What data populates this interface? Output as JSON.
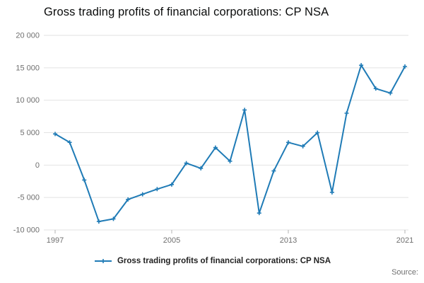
{
  "title": "Gross trading profits of financial corporations: CP NSA",
  "legend": {
    "label": "Gross trading profits of financial corporations: CP NSA"
  },
  "source_label": "Source:",
  "colors": {
    "accent": "#1f7bb6",
    "grid": "#e2e2e2",
    "tick": "#b3b3b3",
    "axis_label": "#6f6f6f"
  },
  "chart_data": {
    "type": "line",
    "title": "Gross trading profits of financial corporations: CP NSA",
    "xlabel": "",
    "ylabel": "",
    "x": [
      1997,
      1998,
      1999,
      2000,
      2001,
      2002,
      2003,
      2004,
      2005,
      2006,
      2007,
      2008,
      2009,
      2010,
      2011,
      2012,
      2013,
      2014,
      2015,
      2016,
      2017,
      2018,
      2019,
      2020,
      2021
    ],
    "values": [
      4800,
      3500,
      -2300,
      -8700,
      -8300,
      -5300,
      -4500,
      -3700,
      -3000,
      300,
      -500,
      2700,
      600,
      8500,
      -7400,
      -900,
      3500,
      2900,
      5000,
      -4200,
      8000,
      15400,
      11800,
      11100,
      15200
    ],
    "xticks": [
      1997,
      2005,
      2013,
      2021
    ],
    "yticks": [
      -10000,
      -5000,
      0,
      5000,
      10000,
      15000,
      20000
    ],
    "ylim": [
      -10000,
      20000
    ],
    "xlim": [
      1997,
      2021
    ],
    "grid": "horizontal",
    "marker": "plus",
    "legend_position": "bottom",
    "legend_entries": [
      "Gross trading profits of financial corporations: CP NSA"
    ]
  }
}
